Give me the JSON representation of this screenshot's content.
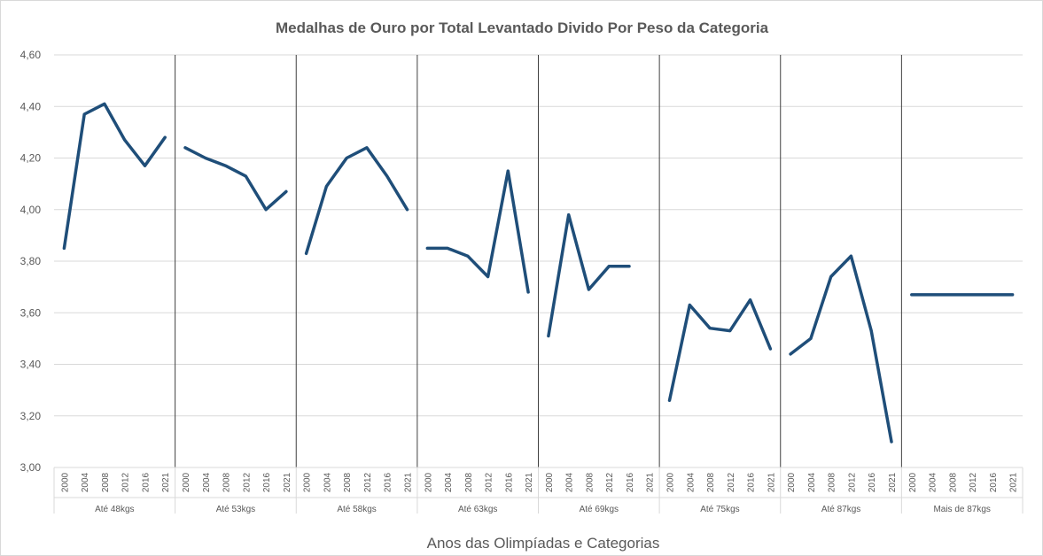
{
  "chart_data": {
    "type": "line",
    "title": "Medalhas de Ouro por Total Levantado Divido Por Peso da Categoria",
    "xlabel": "Anos das Olimpíadas e Categorias",
    "ylabel": "",
    "ylim": [
      3.0,
      4.6
    ],
    "yticks": [
      "3,00",
      "3,20",
      "3,40",
      "3,60",
      "3,80",
      "4,00",
      "4,20",
      "4,40",
      "4,60"
    ],
    "grid": true,
    "legend": "none",
    "line_color": "#1f4e79",
    "years": [
      "2000",
      "2004",
      "2008",
      "2012",
      "2016",
      "2021"
    ],
    "groups": [
      {
        "name": "Até 48kgs",
        "values": [
          3.85,
          4.37,
          4.41,
          4.27,
          4.17,
          4.28
        ]
      },
      {
        "name": "Até 53kgs",
        "values": [
          4.24,
          4.2,
          4.17,
          4.13,
          4.0,
          4.07
        ]
      },
      {
        "name": "Até 58kgs",
        "values": [
          3.83,
          4.09,
          4.2,
          4.24,
          4.13,
          4.0
        ]
      },
      {
        "name": "Até 63kgs",
        "values": [
          3.85,
          3.85,
          3.82,
          3.74,
          4.15,
          3.68
        ]
      },
      {
        "name": "Até 69kgs",
        "values": [
          3.51,
          3.98,
          3.69,
          3.78,
          3.78,
          null
        ]
      },
      {
        "name": "Até 75kgs",
        "values": [
          3.26,
          3.63,
          3.54,
          3.53,
          3.65,
          3.46
        ]
      },
      {
        "name": "Até 87kgs",
        "values": [
          3.44,
          3.5,
          3.74,
          3.82,
          3.53,
          3.1
        ]
      },
      {
        "name": "Mais de 87kgs",
        "values": [
          3.67,
          3.67,
          3.67,
          3.67,
          3.67,
          3.67
        ]
      }
    ]
  }
}
